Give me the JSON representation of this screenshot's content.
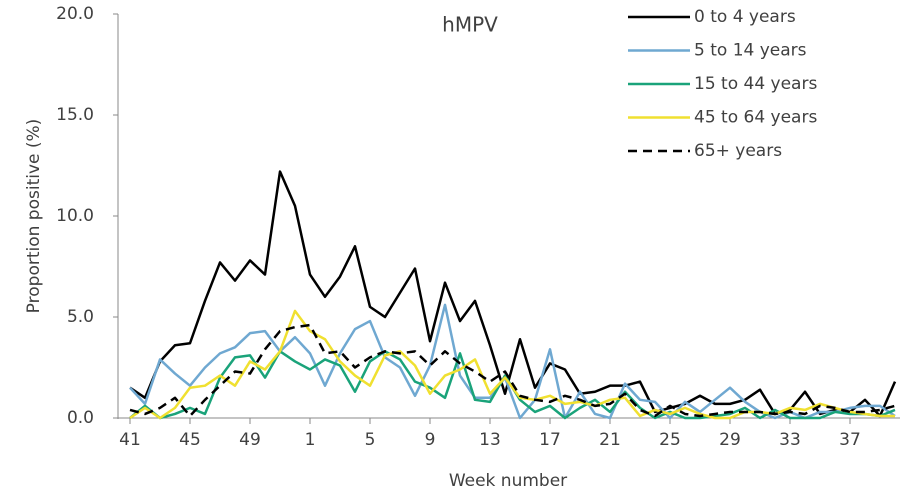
{
  "chart_data": {
    "type": "line",
    "title": "hMPV",
    "x_label": "Week number",
    "y_label": "Proportion positive (%)",
    "categories": [
      "41",
      null,
      null,
      null,
      "45",
      null,
      null,
      null,
      "49",
      null,
      null,
      null,
      "1",
      null,
      null,
      null,
      "5",
      null,
      null,
      null,
      "9",
      null,
      null,
      null,
      "13",
      null,
      null,
      null,
      "17",
      null,
      null,
      null,
      "21",
      null,
      null,
      null,
      "25",
      null,
      null,
      null,
      "29",
      null,
      null,
      null,
      "33",
      null,
      null,
      null,
      "37",
      null,
      null,
      null
    ],
    "ylim": [
      0,
      20
    ],
    "yticks": [
      {
        "value": 0,
        "label": "0.0"
      },
      {
        "value": 5,
        "label": "5.0"
      },
      {
        "value": 10,
        "label": "10.0"
      },
      {
        "value": 15,
        "label": "15.0"
      },
      {
        "value": 20,
        "label": "20.0"
      }
    ],
    "legend": "top-right",
    "series": [
      {
        "name": "0 to 4 years",
        "color": "#000000",
        "dash": false,
        "values": [
          1.5,
          1.0,
          2.8,
          3.6,
          3.7,
          5.8,
          7.7,
          6.8,
          7.8,
          7.1,
          12.2,
          10.5,
          7.1,
          6.0,
          7.0,
          8.5,
          5.5,
          5.0,
          6.2,
          7.4,
          3.8,
          6.7,
          4.8,
          5.8,
          3.6,
          1.2,
          3.9,
          1.5,
          2.7,
          2.4,
          1.2,
          1.3,
          1.6,
          1.6,
          1.8,
          0.3,
          0.5,
          0.7,
          1.1,
          0.7,
          0.7,
          0.9,
          1.4,
          0.2,
          0.4,
          1.3,
          0.2,
          0.4,
          0.3,
          0.9,
          0.1,
          1.8
        ]
      },
      {
        "name": "5 to 14 years",
        "color": "#6fa8d1",
        "dash": false,
        "values": [
          1.5,
          0.7,
          2.9,
          2.2,
          1.6,
          2.5,
          3.2,
          3.5,
          4.2,
          4.3,
          3.3,
          4.0,
          3.2,
          1.6,
          3.2,
          4.4,
          4.8,
          3.0,
          2.5,
          1.1,
          2.6,
          5.6,
          2.1,
          1.0,
          1.0,
          2.0,
          0.0,
          0.9,
          3.4,
          0.0,
          1.3,
          0.2,
          0.0,
          1.7,
          0.9,
          0.8,
          0.0,
          0.8,
          0.3,
          0.9,
          1.5,
          0.8,
          0.3,
          0.0,
          0.3,
          0.0,
          0.3,
          0.3,
          0.5,
          0.6,
          0.6,
          0.1
        ]
      },
      {
        "name": "15 to 44 years",
        "color": "#1aa37a",
        "dash": false,
        "values": [
          0.0,
          0.6,
          0.0,
          0.2,
          0.5,
          0.2,
          2.0,
          3.0,
          3.1,
          2.0,
          3.3,
          2.8,
          2.4,
          2.9,
          2.6,
          1.3,
          2.8,
          3.3,
          2.9,
          1.8,
          1.5,
          1.0,
          3.2,
          0.9,
          0.8,
          2.1,
          0.9,
          0.3,
          0.6,
          0.0,
          0.5,
          0.9,
          0.3,
          1.3,
          0.5,
          0.0,
          0.3,
          0.0,
          0.0,
          0.1,
          0.2,
          0.5,
          0.0,
          0.4,
          0.0,
          0.0,
          0.0,
          0.3,
          0.2,
          0.2,
          0.1,
          0.4
        ]
      },
      {
        "name": "45 to 64 years",
        "color": "#f0e030",
        "dash": false,
        "values": [
          0.0,
          0.5,
          0.0,
          0.5,
          1.5,
          1.6,
          2.1,
          1.6,
          2.8,
          2.4,
          3.3,
          5.3,
          4.3,
          3.9,
          2.8,
          2.1,
          1.6,
          3.1,
          3.3,
          2.6,
          1.2,
          2.1,
          2.4,
          2.9,
          1.2,
          2.0,
          1.0,
          0.9,
          1.1,
          0.7,
          0.8,
          0.6,
          0.9,
          1.0,
          0.1,
          0.4,
          0.2,
          0.5,
          0.2,
          0.0,
          0.0,
          0.3,
          0.3,
          0.2,
          0.5,
          0.4,
          0.7,
          0.5,
          0.3,
          0.2,
          0.1,
          0.1
        ]
      },
      {
        "name": "65+ years",
        "color": "#000000",
        "dash": true,
        "values": [
          0.4,
          0.2,
          0.5,
          1.0,
          0.1,
          0.9,
          1.6,
          2.3,
          2.2,
          3.4,
          4.3,
          4.5,
          4.6,
          3.2,
          3.3,
          2.5,
          3.0,
          3.3,
          3.2,
          3.3,
          2.6,
          3.3,
          2.7,
          2.3,
          1.8,
          2.3,
          1.1,
          0.9,
          0.8,
          1.1,
          0.9,
          0.6,
          0.7,
          1.2,
          0.4,
          0.1,
          0.6,
          0.2,
          0.1,
          0.2,
          0.3,
          0.3,
          0.3,
          0.2,
          0.3,
          0.2,
          0.6,
          0.5,
          0.3,
          0.3,
          0.4,
          0.6
        ]
      }
    ]
  }
}
